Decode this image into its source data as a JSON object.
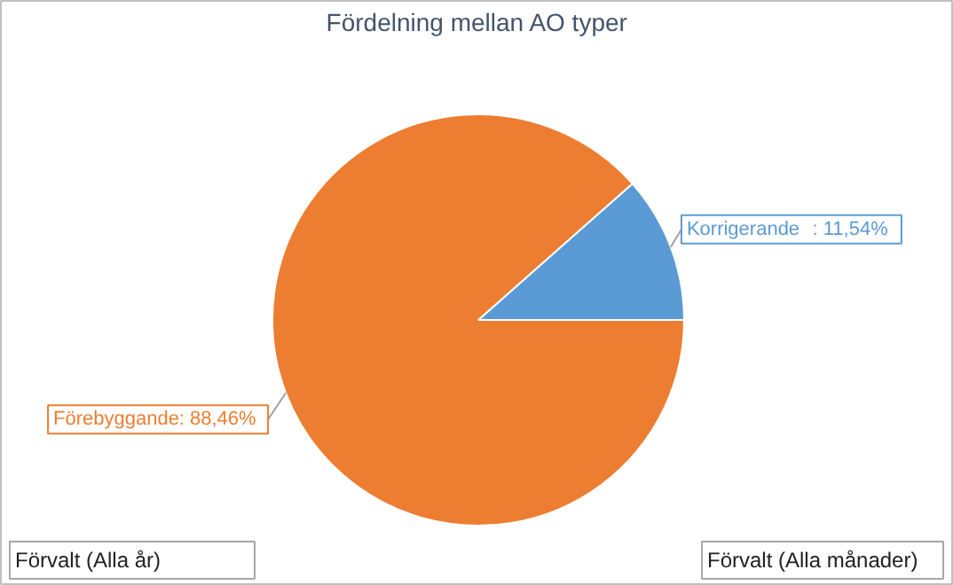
{
  "chart_data": {
    "type": "pie",
    "title": "Fördelning mellan AO typer",
    "categories": [
      "Korrigerande",
      "Förebyggande"
    ],
    "values": [
      11.54,
      88.46
    ],
    "colors": [
      "#5b9bd5",
      "#ed7d31"
    ],
    "value_labels": [
      ": 11,54%",
      ": 88,46%"
    ],
    "annotations": [
      "Förvalt (Alla år)",
      "Förvalt (Alla månader)"
    ]
  }
}
